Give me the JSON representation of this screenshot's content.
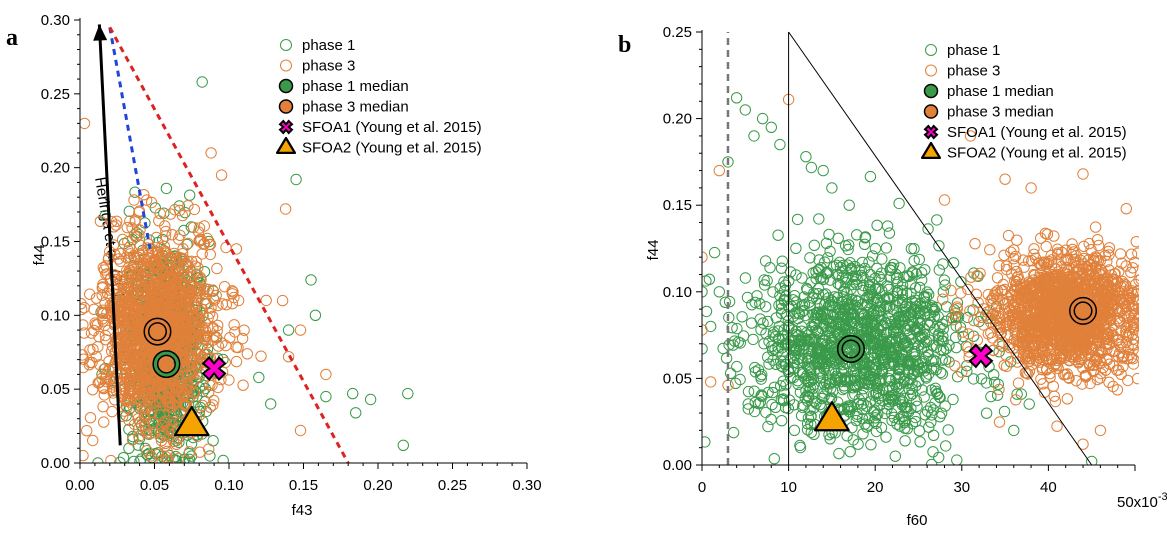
{
  "chart_data": [
    {
      "type": "scatter",
      "panel_label": "a",
      "xlabel": "f43",
      "ylabel": "f44",
      "xlim": [
        0,
        0.3
      ],
      "ylim": [
        0,
        0.3
      ],
      "xticks": [
        "0.00",
        "0.05",
        "0.10",
        "0.15",
        "0.20",
        "0.25",
        "0.30"
      ],
      "yticks": [
        "0.00",
        "0.05",
        "0.10",
        "0.15",
        "0.20",
        "0.25",
        "0.30"
      ],
      "xtick_values": [
        0,
        0.05,
        0.1,
        0.15,
        0.2,
        0.25,
        0.3
      ],
      "ytick_values": [
        0,
        0.05,
        0.1,
        0.15,
        0.2,
        0.25,
        0.3
      ],
      "legend_position": "top-right",
      "legend": [
        "phase 1",
        "phase 3",
        "phase 1 median",
        "phase 3 median",
        "SFOA1 (Young et al. 2015)",
        "SFOA2 (Young et al. 2015)"
      ],
      "series": [
        {
          "name": "phase 1",
          "color": "#3a9a4a",
          "marker": "open-circle",
          "cloud": {
            "mean": [
              0.058,
              0.075
            ],
            "sd": [
              0.013,
              0.035
            ],
            "n": 900
          },
          "extra_points": [
            [
              0.082,
              0.258
            ],
            [
              0.145,
              0.192
            ],
            [
              0.155,
              0.124
            ],
            [
              0.158,
              0.1
            ],
            [
              0.14,
              0.09
            ],
            [
              0.183,
              0.047
            ],
            [
              0.195,
              0.043
            ],
            [
              0.22,
              0.047
            ],
            [
              0.217,
              0.012
            ],
            [
              0.185,
              0.034
            ],
            [
              0.012,
              0.0
            ],
            [
              0.128,
              0.04
            ],
            [
              0.12,
              0.058
            ],
            [
              0.165,
              0.045
            ]
          ]
        },
        {
          "name": "phase 3",
          "color": "#e0803a",
          "marker": "open-circle",
          "cloud": {
            "mean": [
              0.052,
              0.09
            ],
            "sd": [
              0.02,
              0.033
            ],
            "n": 1400
          },
          "extra_points": [
            [
              0.003,
              0.23
            ],
            [
              0.088,
              0.21
            ],
            [
              0.138,
              0.172
            ],
            [
              0.136,
              0.11
            ],
            [
              0.148,
              0.09
            ],
            [
              0.14,
              0.072
            ],
            [
              0.148,
              0.022
            ],
            [
              0.105,
              0.145
            ],
            [
              0.095,
              0.195
            ],
            [
              0.072,
              0.03
            ],
            [
              0.002,
              0.005
            ],
            [
              0.165,
              0.06
            ]
          ]
        }
      ],
      "medians": [
        {
          "name": "phase 1 median",
          "x": 0.058,
          "y": 0.067,
          "color": "#3a9a4a"
        },
        {
          "name": "phase 3 median",
          "x": 0.052,
          "y": 0.089,
          "color": "#e0803a"
        }
      ],
      "references": [
        {
          "name": "SFOA1 (Young et al. 2015)",
          "x": 0.09,
          "y": 0.064,
          "color": "#ff00cc",
          "shape": "cross"
        },
        {
          "name": "SFOA2 (Young et al. 2015)",
          "x": 0.075,
          "y": 0.027,
          "color": "#f5a300",
          "shape": "triangle"
        }
      ],
      "lines": [
        {
          "kind": "arrow",
          "from": [
            0.027,
            0.012
          ],
          "to": [
            0.013,
            0.297
          ],
          "color": "#000000"
        },
        {
          "kind": "dashed",
          "from": [
            0.02,
            0.295
          ],
          "to": [
            0.047,
            0.145
          ],
          "color": "#2244dd"
        },
        {
          "kind": "dashed",
          "from": [
            0.02,
            0.295
          ],
          "to": [
            0.18,
            0.0
          ],
          "color": "#dd2222"
        }
      ],
      "annotation": "Heringa et al. (2012)"
    },
    {
      "type": "scatter",
      "panel_label": "b",
      "xlabel": "f60",
      "ylabel": "f44",
      "xlim": [
        0,
        0.05
      ],
      "ylim": [
        0,
        0.25
      ],
      "xticks": [
        "0",
        "10",
        "20",
        "30",
        "40",
        "50x10-3"
      ],
      "yticks": [
        "0.00",
        "0.05",
        "0.10",
        "0.15",
        "0.20",
        "0.25"
      ],
      "xtick_values": [
        0,
        0.01,
        0.02,
        0.03,
        0.04,
        0.05
      ],
      "ytick_values": [
        0,
        0.05,
        0.1,
        0.15,
        0.2,
        0.25
      ],
      "legend_position": "top-right",
      "legend": [
        "phase 1",
        "phase 3",
        "phase 1 median",
        "phase 3 median",
        "SFOA1 (Young et al. 2015)",
        "SFOA2 (Young et al. 2015)"
      ],
      "series": [
        {
          "name": "phase 1",
          "color": "#3a9a4a",
          "marker": "open-circle",
          "cloud": {
            "mean": [
              0.018,
              0.07
            ],
            "sd": [
              0.006,
              0.026
            ],
            "n": 1300
          },
          "extra_points": [
            [
              0.004,
              0.212
            ],
            [
              0.005,
              0.205
            ],
            [
              0.006,
              0.19
            ],
            [
              0.007,
              0.2
            ],
            [
              0.008,
              0.195
            ],
            [
              0.009,
              0.185
            ],
            [
              0.012,
              0.178
            ],
            [
              0.014,
              0.17
            ],
            [
              0.003,
              0.175
            ],
            [
              0.002,
              0.1
            ],
            [
              0.0,
              0.1
            ],
            [
              0.001,
              0.08
            ],
            [
              0.036,
              0.02
            ],
            [
              0.045,
              0.002
            ],
            [
              0.015,
              0.16
            ],
            [
              0.017,
              0.15
            ]
          ]
        },
        {
          "name": "phase 3",
          "color": "#e0803a",
          "marker": "open-circle",
          "cloud": {
            "mean": [
              0.042,
              0.088
            ],
            "sd": [
              0.0045,
              0.017
            ],
            "n": 1500
          },
          "extra_points": [
            [
              0.01,
              0.211
            ],
            [
              0.002,
              0.17
            ],
            [
              0.0,
              0.12
            ],
            [
              0.001,
              0.048
            ],
            [
              0.003,
              0.046
            ],
            [
              0.0,
              0.078
            ],
            [
              0.028,
              0.153
            ],
            [
              0.035,
              0.165
            ],
            [
              0.044,
              0.168
            ],
            [
              0.049,
              0.148
            ],
            [
              0.044,
              0.012
            ],
            [
              0.046,
              0.02
            ],
            [
              0.031,
              0.19
            ],
            [
              0.038,
              0.16
            ]
          ]
        }
      ],
      "medians": [
        {
          "name": "phase 1 median",
          "x": 0.0172,
          "y": 0.067,
          "color": "#3a9a4a"
        },
        {
          "name": "phase 3 median",
          "x": 0.044,
          "y": 0.089,
          "color": "#e0803a"
        }
      ],
      "references": [
        {
          "name": "SFOA1 (Young et al. 2015)",
          "x": 0.0322,
          "y": 0.063,
          "color": "#ff00cc",
          "shape": "cross"
        },
        {
          "name": "SFOA2 (Young et al. 2015)",
          "x": 0.015,
          "y": 0.027,
          "color": "#f5a300",
          "shape": "triangle"
        }
      ],
      "lines": [
        {
          "kind": "dashed",
          "from": [
            0.003,
            0.0
          ],
          "to": [
            0.003,
            0.25
          ],
          "color": "#777777"
        },
        {
          "kind": "solid",
          "from": [
            0.01,
            0.0
          ],
          "to": [
            0.01,
            0.25
          ],
          "color": "#000000"
        },
        {
          "kind": "solid",
          "from": [
            0.01,
            0.25
          ],
          "to": [
            0.045,
            0.0
          ],
          "color": "#000000"
        }
      ]
    }
  ]
}
